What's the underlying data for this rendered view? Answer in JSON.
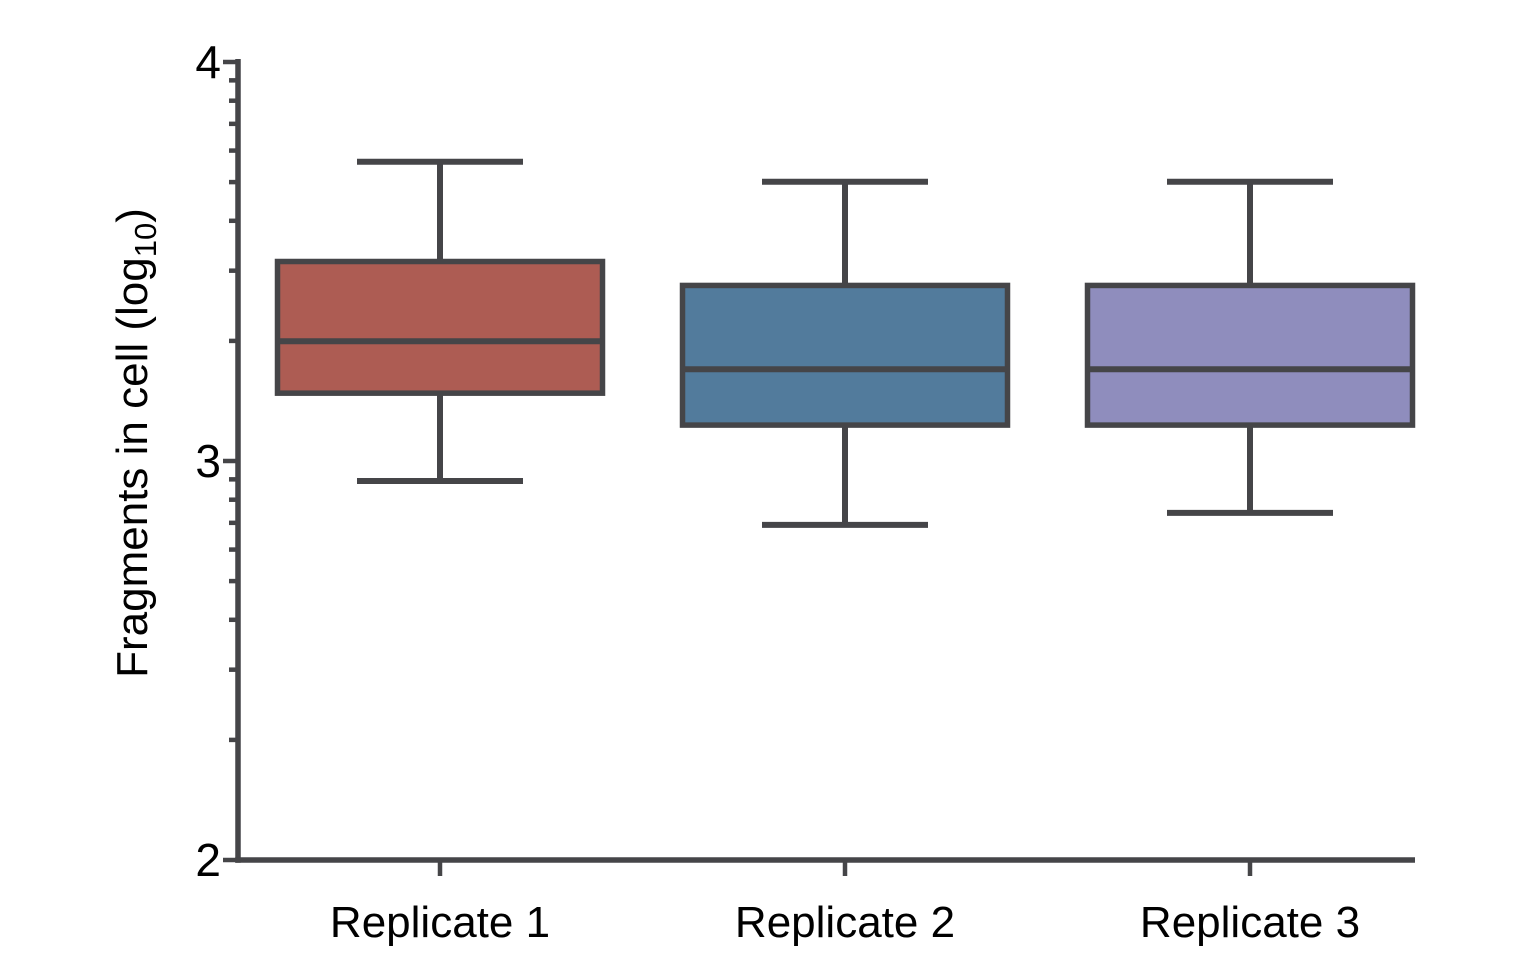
{
  "page": {
    "background": "#ffffff"
  },
  "chart_data": {
    "type": "box",
    "title": "",
    "xlabel": "",
    "ylabel": {
      "full": "Fragments in cell (log10)",
      "pre": "Fragments in cell (log",
      "sub": "10",
      "post": ")"
    },
    "categories": [
      "Replicate 1",
      "Replicate 2",
      "Replicate 3"
    ],
    "series": [
      {
        "name": "Replicate 1",
        "color": "#ad5c53",
        "whisker_low": 2.95,
        "q1": 3.17,
        "median": 3.3,
        "q3": 3.5,
        "whisker_high": 3.75
      },
      {
        "name": "Replicate 2",
        "color": "#527b9c",
        "whisker_low": 2.84,
        "q1": 3.09,
        "median": 3.23,
        "q3": 3.44,
        "whisker_high": 3.7
      },
      {
        "name": "Replicate 3",
        "color": "#8f8dbd",
        "whisker_low": 2.87,
        "q1": 3.09,
        "median": 3.23,
        "q3": 3.44,
        "whisker_high": 3.7
      }
    ],
    "yaxis": {
      "min": 2,
      "max": 4,
      "major_ticks": [
        4,
        3,
        2
      ],
      "major_tick_labels": [
        "4",
        "3",
        "2"
      ],
      "minor_ticks": [
        2.301,
        2.477,
        2.602,
        2.699,
        2.778,
        2.845,
        2.903,
        2.954,
        3.301,
        3.477,
        3.602,
        3.699,
        3.778,
        3.845,
        3.903,
        3.954
      ],
      "scale_note": "log10-transformed values; minor ticks at log10 spacing within each decade"
    },
    "legend": "none",
    "grid": false,
    "colors": {
      "box_outline": "#454548",
      "whisker": "#454548",
      "axis": "#454548",
      "text": "#000000"
    }
  }
}
